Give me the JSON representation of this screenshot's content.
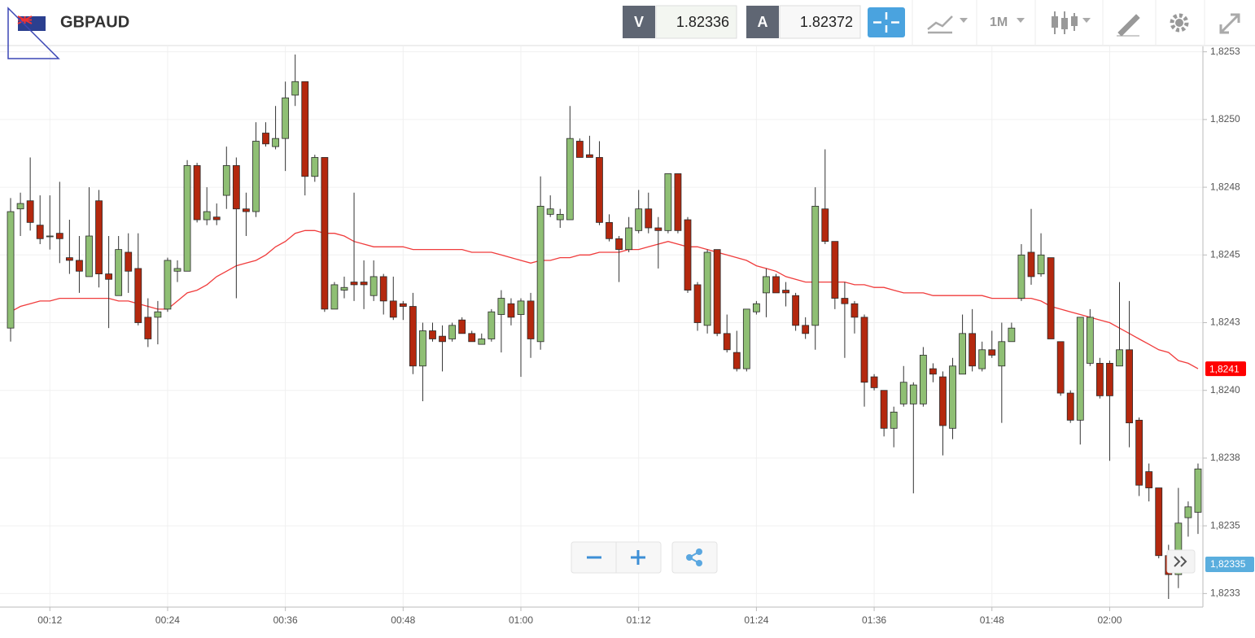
{
  "toolbar": {
    "symbol": "GBPAUD",
    "bid_label": "V",
    "bid": "1.82336",
    "ask_label": "A",
    "ask": "1.82372",
    "timeframe": "1M"
  },
  "chart_data": {
    "type": "candlestick",
    "categories": [
      null,
      null,
      null,
      null,
      "00:12",
      null,
      null,
      null,
      null,
      null,
      null,
      null,
      null,
      null,
      null,
      null,
      "00:24",
      null,
      null,
      null,
      null,
      null,
      null,
      null,
      null,
      null,
      null,
      null,
      "00:36",
      null,
      null,
      null,
      null,
      null,
      null,
      null,
      null,
      null,
      null,
      null,
      "00:48",
      null,
      null,
      null,
      null,
      null,
      null,
      null,
      null,
      null,
      null,
      null,
      "01:00",
      null,
      null,
      null,
      null,
      null,
      null,
      null,
      null,
      null,
      null,
      null,
      "01:12",
      null,
      null,
      null,
      null,
      null,
      null,
      null,
      null,
      null,
      null,
      null,
      "01:24",
      null,
      null,
      null,
      null,
      null,
      null,
      null,
      null,
      null,
      null,
      null,
      "01:36",
      null,
      null,
      null,
      null,
      null,
      null,
      null,
      null,
      null,
      null,
      null,
      "01:48",
      null,
      null,
      null,
      null,
      null,
      null,
      null,
      null,
      null,
      null,
      null,
      "02:00",
      null,
      null,
      null,
      null,
      null,
      null,
      null,
      null,
      null
    ],
    "open": [
      1.82428,
      1.82472,
      1.82475,
      1.82466,
      1.82462,
      1.82463,
      1.82454,
      1.82453,
      1.82447,
      1.82475,
      1.82448,
      1.8244,
      1.82456,
      1.8245,
      1.82432,
      1.82432,
      1.82435,
      1.82449,
      1.82449,
      1.82488,
      1.82468,
      1.82469,
      1.82477,
      1.82488,
      1.82472,
      1.82471,
      1.825,
      1.82495,
      1.82498,
      1.82514,
      1.82519,
      1.82484,
      1.82491,
      1.82435,
      1.82442,
      1.82445,
      1.82445,
      1.8244,
      1.82447,
      1.82438,
      1.82437,
      1.82436,
      1.82414,
      1.82427,
      1.82425,
      1.82424,
      1.82431,
      1.82426,
      1.82422,
      1.82424,
      1.82433,
      1.82437,
      1.82433,
      1.82438,
      1.82423,
      1.8247,
      1.82468,
      1.82468,
      1.82497,
      1.82492,
      1.82491,
      1.82467,
      1.82461,
      1.82457,
      1.82464,
      1.82472,
      1.82465,
      1.82464,
      1.82485,
      1.82468,
      1.82444,
      1.82429,
      1.82457,
      1.82426,
      1.82419,
      1.82413,
      1.82434,
      1.82441,
      1.82447,
      1.82442,
      1.8244,
      1.82429,
      1.82429,
      1.82472,
      1.8246,
      1.82439,
      1.82437,
      1.82432,
      1.8241,
      1.82405,
      1.82391,
      1.824,
      1.824,
      1.824,
      1.82413,
      1.8241,
      1.82391,
      1.82411,
      1.82426,
      1.82413,
      1.8242,
      1.82414,
      1.82423,
      1.82439,
      1.82456,
      1.82448,
      1.82454,
      1.82423,
      1.82404,
      1.82394,
      1.82415,
      1.82415,
      1.82415,
      1.82414,
      1.8242,
      1.82394,
      1.82375,
      1.82369,
      1.82344,
      1.82337,
      1.82358,
      1.8236
    ],
    "high": [
      1.82476,
      1.82478,
      1.82491,
      1.82477,
      1.82477,
      1.82482,
      1.82468,
      1.82462,
      1.8248,
      1.82479,
      1.82462,
      1.82462,
      1.82463,
      1.82463,
      1.82439,
      1.82438,
      1.82454,
      1.82453,
      1.8249,
      1.82489,
      1.8248,
      1.82474,
      1.82495,
      1.82491,
      1.82478,
      1.82504,
      1.82504,
      1.8251,
      1.82519,
      1.82529,
      1.82519,
      1.82492,
      1.82491,
      1.82445,
      1.82447,
      1.82478,
      1.82453,
      1.82453,
      1.82448,
      1.82447,
      1.82438,
      1.82441,
      1.8243,
      1.8243,
      1.82429,
      1.8243,
      1.82432,
      1.82427,
      1.82426,
      1.82435,
      1.82442,
      1.82439,
      1.82439,
      1.82441,
      1.82484,
      1.82477,
      1.82472,
      1.8251,
      1.82498,
      1.82499,
      1.82497,
      1.8247,
      1.82462,
      1.82469,
      1.82479,
      1.82478,
      1.82469,
      1.82485,
      1.82485,
      1.82469,
      1.82445,
      1.82457,
      1.82457,
      1.82433,
      1.82427,
      1.82435,
      1.82438,
      1.8245,
      1.82448,
      1.82445,
      1.82441,
      1.82432,
      1.8248,
      1.82494,
      1.8246,
      1.82445,
      1.82438,
      1.82433,
      1.82411,
      1.82405,
      1.82399,
      1.82414,
      1.82408,
      1.82421,
      1.82415,
      1.82412,
      1.82417,
      1.82433,
      1.82435,
      1.82423,
      1.82427,
      1.8243,
      1.8243,
      1.82459,
      1.82472,
      1.82463,
      1.82454,
      1.82423,
      1.82405,
      1.82432,
      1.82435,
      1.82417,
      1.82416,
      1.82445,
      1.82438,
      1.82395,
      1.82378,
      1.82369,
      1.82348,
      1.82369,
      1.82364,
      1.82378
    ],
    "low": [
      1.82423,
      1.82462,
      1.82464,
      1.82459,
      1.82457,
      1.82452,
      1.82448,
      1.82441,
      1.82447,
      1.82443,
      1.82428,
      1.8244,
      1.82441,
      1.82429,
      1.82421,
      1.82422,
      1.82434,
      1.82445,
      1.82449,
      1.82467,
      1.82466,
      1.82466,
      1.82472,
      1.82439,
      1.82462,
      1.82469,
      1.82495,
      1.82494,
      1.82486,
      1.8251,
      1.82477,
      1.82482,
      1.82434,
      1.82435,
      1.82439,
      1.82438,
      1.82435,
      1.82438,
      1.82433,
      1.82431,
      1.82431,
      1.82411,
      1.82401,
      1.82423,
      1.82412,
      1.82423,
      1.82426,
      1.82423,
      1.82422,
      1.82423,
      1.82419,
      1.82429,
      1.8241,
      1.82417,
      1.8242,
      1.82469,
      1.82465,
      1.82468,
      1.82491,
      1.82491,
      1.82466,
      1.8246,
      1.82445,
      1.82456,
      1.82463,
      1.82463,
      1.8245,
      1.82463,
      1.82463,
      1.82441,
      1.82427,
      1.82426,
      1.82425,
      1.82419,
      1.82412,
      1.82412,
      1.82433,
      1.82432,
      1.82441,
      1.82436,
      1.82427,
      1.82424,
      1.8242,
      1.82459,
      1.82435,
      1.82417,
      1.82426,
      1.82399,
      1.82405,
      1.82388,
      1.82384,
      1.82399,
      1.82367,
      1.82399,
      1.82408,
      1.82381,
      1.82387,
      1.82411,
      1.82412,
      1.82412,
      1.82417,
      1.82393,
      1.82423,
      1.82438,
      1.82444,
      1.82447,
      1.82424,
      1.82403,
      1.82393,
      1.82385,
      1.82414,
      1.82402,
      1.82379,
      1.82414,
      1.82384,
      1.82366,
      1.82364,
      1.82343,
      1.82328,
      1.82332,
      1.82351,
      1.82352
    ],
    "close": [
      1.82471,
      1.82474,
      1.82467,
      1.82461,
      1.82462,
      1.82461,
      1.82453,
      1.82449,
      1.82462,
      1.82448,
      1.82446,
      1.82457,
      1.82449,
      1.8243,
      1.82424,
      1.82434,
      1.82453,
      1.8245,
      1.82488,
      1.82468,
      1.82471,
      1.82468,
      1.82488,
      1.82472,
      1.82471,
      1.82497,
      1.82496,
      1.82498,
      1.82513,
      1.82519,
      1.82484,
      1.82491,
      1.82435,
      1.82444,
      1.82443,
      1.82444,
      1.82444,
      1.82447,
      1.82438,
      1.82432,
      1.82436,
      1.82414,
      1.82427,
      1.82424,
      1.82423,
      1.82429,
      1.82426,
      1.82423,
      1.82424,
      1.82434,
      1.82439,
      1.82432,
      1.82438,
      1.82424,
      1.82473,
      1.82472,
      1.8247,
      1.82498,
      1.82491,
      1.82491,
      1.82467,
      1.82461,
      1.82457,
      1.82465,
      1.82472,
      1.82465,
      1.82464,
      1.82485,
      1.82464,
      1.82442,
      1.8243,
      1.82456,
      1.82426,
      1.8242,
      1.82413,
      1.82435,
      1.82437,
      1.82447,
      1.82441,
      1.82441,
      1.82429,
      1.82426,
      1.82473,
      1.8246,
      1.82439,
      1.82437,
      1.82432,
      1.82408,
      1.82406,
      1.82391,
      1.82397,
      1.82408,
      1.82407,
      1.82418,
      1.82411,
      1.82392,
      1.82414,
      1.82426,
      1.82414,
      1.8242,
      1.82418,
      1.82423,
      1.82428,
      1.82455,
      1.82447,
      1.82455,
      1.82424,
      1.82404,
      1.82394,
      1.82432,
      1.82432,
      1.82403,
      1.82403,
      1.8242,
      1.82393,
      1.8237,
      1.82369,
      1.82344,
      1.82337,
      1.82356,
      1.82362,
      1.82376
    ],
    "up_color": "#8fbf74",
    "down_color": "#b4280e",
    "ma": {
      "color": "#f03c3c",
      "label": "1,8241",
      "values": [
        1.82434,
        1.82436,
        1.82437,
        1.82438,
        1.82438,
        1.82439,
        1.82439,
        1.82439,
        1.82439,
        1.82439,
        1.82439,
        1.82438,
        1.82438,
        1.82437,
        1.82436,
        1.82435,
        1.82435,
        1.82438,
        1.82441,
        1.82442,
        1.82444,
        1.82447,
        1.82449,
        1.82451,
        1.82452,
        1.82453,
        1.82455,
        1.82458,
        1.8246,
        1.82463,
        1.82464,
        1.82464,
        1.82463,
        1.82463,
        1.82462,
        1.8246,
        1.82459,
        1.82458,
        1.82458,
        1.82458,
        1.82458,
        1.82457,
        1.82457,
        1.82457,
        1.82457,
        1.82457,
        1.82457,
        1.82456,
        1.82456,
        1.82456,
        1.82455,
        1.82454,
        1.82453,
        1.82452,
        1.82453,
        1.82453,
        1.82454,
        1.82454,
        1.82455,
        1.82455,
        1.82456,
        1.82456,
        1.82456,
        1.82457,
        1.82457,
        1.82458,
        1.82459,
        1.8246,
        1.82459,
        1.82458,
        1.82458,
        1.82457,
        1.82456,
        1.82455,
        1.82454,
        1.82453,
        1.82451,
        1.8245,
        1.82449,
        1.82447,
        1.82446,
        1.82445,
        1.82445,
        1.82445,
        1.82445,
        1.82445,
        1.82444,
        1.82444,
        1.82443,
        1.82443,
        1.82442,
        1.82441,
        1.82441,
        1.82441,
        1.8244,
        1.8244,
        1.8244,
        1.8244,
        1.8244,
        1.8244,
        1.82439,
        1.82439,
        1.82439,
        1.82439,
        1.82439,
        1.82438,
        1.82436,
        1.82435,
        1.82434,
        1.82433,
        1.82432,
        1.82431,
        1.8243,
        1.82428,
        1.82426,
        1.82424,
        1.82422,
        1.8242,
        1.82419,
        1.82416,
        1.82415,
        1.82413
      ]
    },
    "last_price_label": "1,82335",
    "ylim": [
      1.82325,
      1.82532
    ],
    "yticks": [
      {
        "value": 1.8233,
        "label": "1,8233"
      },
      {
        "value": 1.82355,
        "label": "1,8235"
      },
      {
        "value": 1.8238,
        "label": "1,8238"
      },
      {
        "value": 1.82405,
        "label": "1,8240"
      },
      {
        "value": 1.8243,
        "label": "1,8243"
      },
      {
        "value": 1.82455,
        "label": "1,8245"
      },
      {
        "value": 1.8248,
        "label": "1,8248"
      },
      {
        "value": 1.82505,
        "label": "1,8250"
      },
      {
        "value": 1.8253,
        "label": "1,8253"
      }
    ],
    "grid": true
  }
}
